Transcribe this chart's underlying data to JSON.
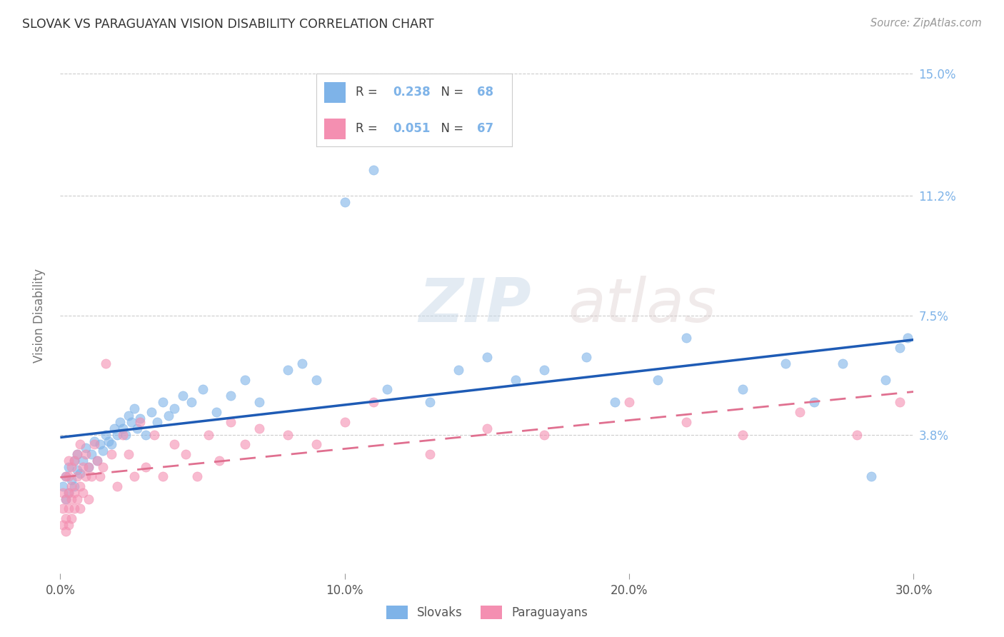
{
  "title": "SLOVAK VS PARAGUAYAN VISION DISABILITY CORRELATION CHART",
  "source": "Source: ZipAtlas.com",
  "ylabel": "Vision Disability",
  "xlim": [
    0.0,
    0.3
  ],
  "ylim": [
    -0.005,
    0.155
  ],
  "xticks": [
    0.0,
    0.1,
    0.2,
    0.3
  ],
  "xticklabels": [
    "0.0%",
    "10.0%",
    "20.0%",
    "30.0%"
  ],
  "ytick_values": [
    0.038,
    0.075,
    0.112,
    0.15
  ],
  "ytick_labels": [
    "3.8%",
    "7.5%",
    "11.2%",
    "15.0%"
  ],
  "legend_r1": "0.238",
  "legend_n1": "68",
  "legend_r2": "0.051",
  "legend_n2": "67",
  "blue_color": "#7EB3E8",
  "pink_color": "#F48FB1",
  "trend_blue": "#1E5BB5",
  "trend_pink": "#E07090",
  "watermark_zip": "ZIP",
  "watermark_atlas": "atlas",
  "slovaks_x": [
    0.001,
    0.002,
    0.002,
    0.003,
    0.003,
    0.004,
    0.005,
    0.005,
    0.006,
    0.006,
    0.007,
    0.008,
    0.009,
    0.01,
    0.011,
    0.012,
    0.013,
    0.014,
    0.015,
    0.016,
    0.017,
    0.018,
    0.019,
    0.02,
    0.021,
    0.022,
    0.023,
    0.024,
    0.025,
    0.026,
    0.027,
    0.028,
    0.03,
    0.032,
    0.034,
    0.036,
    0.038,
    0.04,
    0.043,
    0.046,
    0.05,
    0.055,
    0.06,
    0.065,
    0.07,
    0.08,
    0.085,
    0.09,
    0.1,
    0.11,
    0.115,
    0.13,
    0.14,
    0.15,
    0.16,
    0.17,
    0.185,
    0.195,
    0.21,
    0.22,
    0.24,
    0.255,
    0.265,
    0.275,
    0.285,
    0.29,
    0.295,
    0.298
  ],
  "slovaks_y": [
    0.022,
    0.018,
    0.025,
    0.02,
    0.028,
    0.024,
    0.03,
    0.022,
    0.027,
    0.032,
    0.026,
    0.03,
    0.034,
    0.028,
    0.032,
    0.036,
    0.03,
    0.035,
    0.033,
    0.038,
    0.036,
    0.035,
    0.04,
    0.038,
    0.042,
    0.04,
    0.038,
    0.044,
    0.042,
    0.046,
    0.04,
    0.043,
    0.038,
    0.045,
    0.042,
    0.048,
    0.044,
    0.046,
    0.05,
    0.048,
    0.052,
    0.045,
    0.05,
    0.055,
    0.048,
    0.058,
    0.06,
    0.055,
    0.11,
    0.12,
    0.052,
    0.048,
    0.058,
    0.062,
    0.055,
    0.058,
    0.062,
    0.048,
    0.055,
    0.068,
    0.052,
    0.06,
    0.048,
    0.06,
    0.025,
    0.055,
    0.065,
    0.068
  ],
  "paraguayans_x": [
    0.001,
    0.001,
    0.001,
    0.002,
    0.002,
    0.002,
    0.002,
    0.003,
    0.003,
    0.003,
    0.003,
    0.003,
    0.004,
    0.004,
    0.004,
    0.004,
    0.005,
    0.005,
    0.005,
    0.006,
    0.006,
    0.006,
    0.007,
    0.007,
    0.007,
    0.008,
    0.008,
    0.009,
    0.009,
    0.01,
    0.01,
    0.011,
    0.012,
    0.013,
    0.014,
    0.015,
    0.016,
    0.018,
    0.02,
    0.022,
    0.024,
    0.026,
    0.028,
    0.03,
    0.033,
    0.036,
    0.04,
    0.044,
    0.048,
    0.052,
    0.056,
    0.06,
    0.065,
    0.07,
    0.08,
    0.09,
    0.1,
    0.11,
    0.13,
    0.15,
    0.17,
    0.2,
    0.22,
    0.24,
    0.26,
    0.28,
    0.295
  ],
  "paraguayans_y": [
    0.01,
    0.015,
    0.02,
    0.008,
    0.012,
    0.018,
    0.025,
    0.01,
    0.015,
    0.02,
    0.025,
    0.03,
    0.012,
    0.018,
    0.022,
    0.028,
    0.015,
    0.02,
    0.03,
    0.018,
    0.025,
    0.032,
    0.015,
    0.022,
    0.035,
    0.02,
    0.028,
    0.025,
    0.032,
    0.018,
    0.028,
    0.025,
    0.035,
    0.03,
    0.025,
    0.028,
    0.06,
    0.032,
    0.022,
    0.038,
    0.032,
    0.025,
    0.042,
    0.028,
    0.038,
    0.025,
    0.035,
    0.032,
    0.025,
    0.038,
    0.03,
    0.042,
    0.035,
    0.04,
    0.038,
    0.035,
    0.042,
    0.048,
    0.032,
    0.04,
    0.038,
    0.048,
    0.042,
    0.038,
    0.045,
    0.038,
    0.048
  ]
}
